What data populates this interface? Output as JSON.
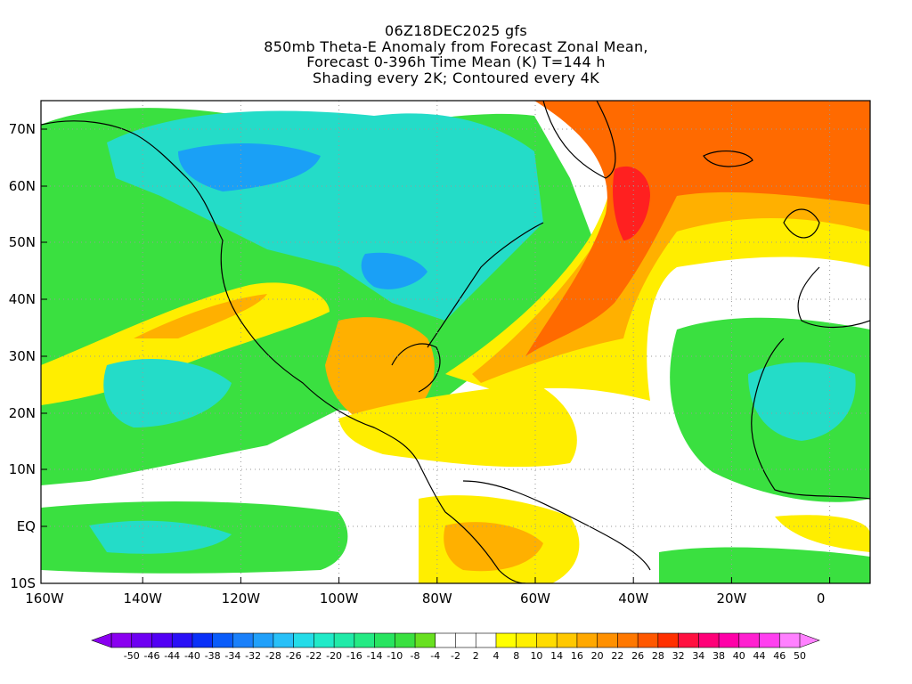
{
  "title_lines": [
    "06Z18DEC2025 gfs",
    "850mb Theta-E Anomaly from Forecast Zonal Mean,",
    "Forecast 0-396h Time Mean (K) T=144 h",
    "Shading every 2K; Contoured every 4K"
  ],
  "lat_labels": [
    "70N",
    "60N",
    "50N",
    "40N",
    "30N",
    "20N",
    "10N",
    "EQ",
    "10S"
  ],
  "lon_labels": [
    "160W",
    "140W",
    "120W",
    "100W",
    "80W",
    "60W",
    "40W",
    "20W",
    "0"
  ],
  "colorbar": {
    "labels": [
      "-50",
      "-46",
      "-44",
      "-40",
      "-38",
      "-34",
      "-32",
      "-28",
      "-26",
      "-22",
      "-20",
      "-16",
      "-14",
      "-10",
      "-8",
      "-4",
      "-2",
      "2",
      "4",
      "8",
      "10",
      "14",
      "16",
      "20",
      "22",
      "26",
      "28",
      "32",
      "34",
      "38",
      "40",
      "44",
      "46",
      "50"
    ],
    "colors": [
      "#8a00f0",
      "#6e00f2",
      "#5200f4",
      "#2a10f6",
      "#0a30f8",
      "#0a5cfa",
      "#1a80fa",
      "#20a0fa",
      "#28c0f8",
      "#24dce8",
      "#20eac8",
      "#20eaa8",
      "#24ea84",
      "#28e460",
      "#3ae040",
      "#68e020",
      "#ffffff",
      "#ffffff",
      "#ffffff",
      "#ffff00",
      "#fff000",
      "#ffdc00",
      "#ffc800",
      "#ffa800",
      "#ff9000",
      "#ff7800",
      "#ff5800",
      "#ff3000",
      "#ff1040",
      "#ff0078",
      "#ff00a8",
      "#ff20d0",
      "#ff40f0",
      "#ff80ff"
    ]
  },
  "map": {
    "lon_range": [
      -160,
      10
    ],
    "lat_range": [
      -10,
      75
    ],
    "grid_lines": true,
    "colors": {
      "cold_strong": "#1aa0f6",
      "cold_mid": "#24dcc8",
      "cold_weak": "#3ae040",
      "neutral": "#ffffff",
      "warm_weak": "#ffee00",
      "warm_mid": "#ffb000",
      "warm_strong": "#ff6a00",
      "warm_max": "#ff2020"
    }
  }
}
